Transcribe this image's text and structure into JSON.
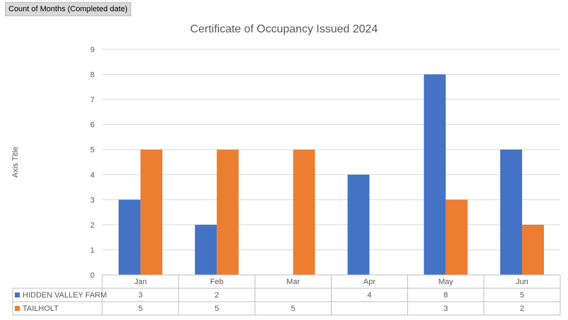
{
  "field_button": {
    "label": "Count of Months (Completed date)"
  },
  "chart_data": {
    "type": "bar",
    "title": "Certificate of Occupancy Issued 2024",
    "xlabel": "",
    "ylabel": "Axis Title",
    "ylim": [
      0,
      9
    ],
    "yticks": [
      0,
      1,
      2,
      3,
      4,
      5,
      6,
      7,
      8,
      9
    ],
    "categories": [
      "Jan",
      "Feb",
      "Mar",
      "Apr",
      "May",
      "Jun"
    ],
    "series": [
      {
        "name": "HIDDEN VALLEY FARM",
        "color": "#4472c4",
        "values": [
          3,
          2,
          null,
          4,
          8,
          5
        ]
      },
      {
        "name": "TAILHOLT",
        "color": "#ed7d31",
        "values": [
          5,
          5,
          5,
          null,
          3,
          2
        ]
      }
    ],
    "grid": true,
    "legend": "data-table",
    "data_table": true
  }
}
